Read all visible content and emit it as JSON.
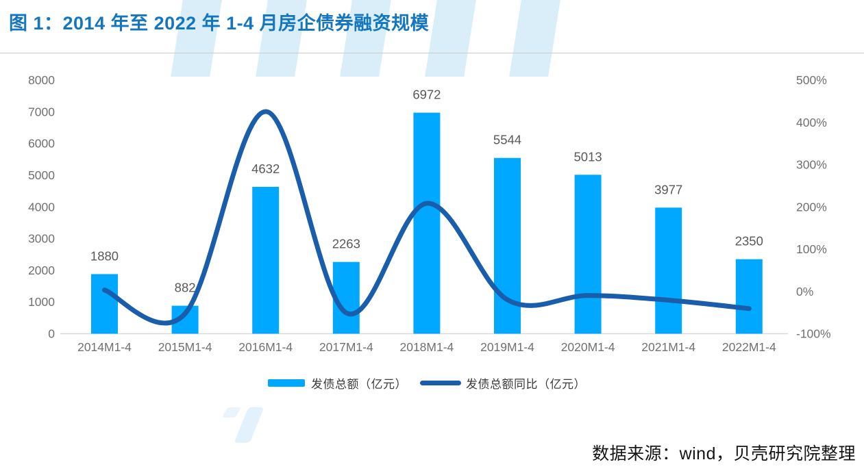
{
  "header": {
    "title": "图 1：2014 年至 2022 年 1-4 月房企债券融资规模"
  },
  "legend": {
    "bar_label": "发债总额（亿元）",
    "line_label": "发债总额同比（亿元）"
  },
  "footer": {
    "source": "数据来源：wind，贝壳研究院整理"
  },
  "colors": {
    "title": "#1476be",
    "bar": "#00a8ff",
    "line": "#1a5dab",
    "axis_text": "#707070",
    "bar_label_text": "#595959",
    "legend_text": "#3a3a3a",
    "source_text": "#141414",
    "divider": "#cbcbcb",
    "axis_line": "#d9d9d9",
    "watermark": "#daeefa"
  },
  "chart_data": {
    "type": "bar",
    "combo": "bar+line",
    "title": "2014 年至 2022 年 1-4 月房企债券融资规模",
    "categories": [
      "2014M1-4",
      "2015M1-4",
      "2016M1-4",
      "2017M1-4",
      "2018M1-4",
      "2019M1-4",
      "2020M1-4",
      "2021M1-4",
      "2022M1-4"
    ],
    "series": [
      {
        "name": "发债总额（亿元）",
        "type": "bar",
        "axis": "left",
        "values": [
          1880,
          882,
          4632,
          2263,
          6972,
          5544,
          5013,
          3977,
          2350
        ],
        "data_labels": [
          "1880",
          "882",
          "4632",
          "2263",
          "6972",
          "5544",
          "5013",
          "3977",
          "2350"
        ]
      },
      {
        "name": "发债总额同比（亿元）",
        "type": "line",
        "axis": "right",
        "unit": "%",
        "values": [
          3,
          -53,
          425,
          -51,
          208,
          -20,
          -10,
          -21,
          -41
        ]
      }
    ],
    "left_axis": {
      "min": 0,
      "max": 8000,
      "tick_step": 1000,
      "ticks": [
        "8000",
        "7000",
        "6000",
        "5000",
        "4000",
        "3000",
        "2000",
        "1000",
        "0"
      ]
    },
    "right_axis": {
      "min": -100,
      "max": 500,
      "tick_step": 100,
      "ticks": [
        "500%",
        "400%",
        "300%",
        "200%",
        "100%",
        "0%",
        "-100%"
      ]
    },
    "grid": false,
    "legend_position": "bottom",
    "smoothed_line": true
  }
}
